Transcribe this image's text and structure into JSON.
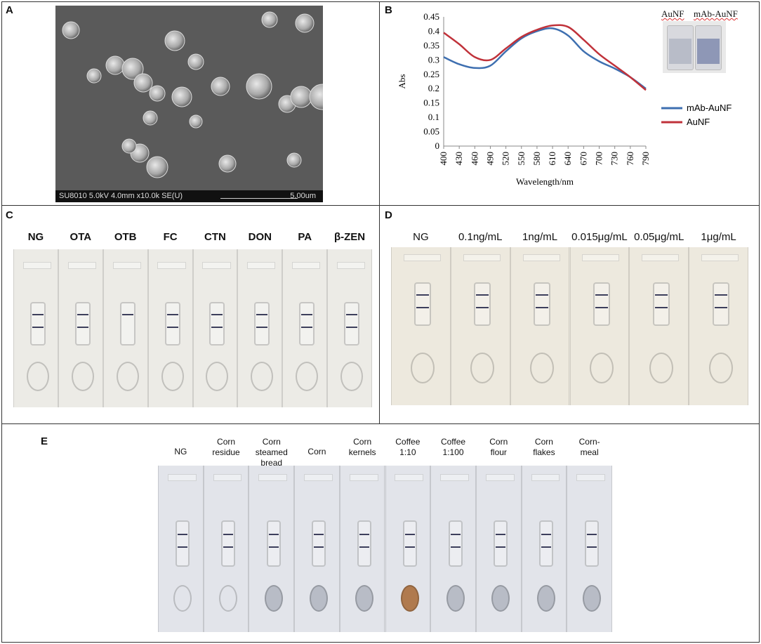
{
  "panels": {
    "A": {
      "label": "A",
      "sem_info": "SU8010 5.0kV 4.0mm x10.0k SE(U)",
      "sem_scale": "5.00um"
    },
    "B": {
      "label": "B",
      "vial_labels": [
        "AuNF",
        "mAb-AuNF"
      ]
    },
    "C": {
      "label": "C",
      "strip_labels": [
        "NG",
        "OTA",
        "OTB",
        "FC",
        "CTN",
        "DON",
        "PA",
        "β-ZEN"
      ]
    },
    "D": {
      "label": "D",
      "strip_labels": [
        "NG",
        "0.1ng/mL",
        "1ng/mL",
        "0.015μg/mL",
        "0.05μg/mL",
        "1μg/mL"
      ]
    },
    "E": {
      "label": "E",
      "strip_labels": [
        [
          "NG"
        ],
        [
          "Corn",
          "residue"
        ],
        [
          "Corn",
          "steamed",
          "bread"
        ],
        [
          "Corn"
        ],
        [
          "Corn",
          "kernels"
        ],
        [
          "Coffee",
          "1:10"
        ],
        [
          "Coffee",
          "1:100"
        ],
        [
          "Corn",
          "flour"
        ],
        [
          "Corn",
          "flakes"
        ],
        [
          "Corn-",
          "meal"
        ]
      ]
    }
  },
  "chart_data": {
    "type": "line",
    "xlabel": "Wavelength/nm",
    "ylabel": "Abs",
    "ylim": [
      0,
      0.45
    ],
    "yticks": [
      "0",
      "0.05",
      "0.1",
      "0.15",
      "0.2",
      "0.25",
      "0.3",
      "0.35",
      "0.4",
      "0.45"
    ],
    "xticks": [
      "400",
      "430",
      "460",
      "490",
      "520",
      "550",
      "580",
      "610",
      "640",
      "670",
      "700",
      "730",
      "760",
      "790"
    ],
    "x": [
      400,
      430,
      460,
      490,
      520,
      550,
      580,
      610,
      640,
      670,
      700,
      730,
      760,
      790
    ],
    "series": [
      {
        "name": "mAb-AuNF",
        "color": "#3e6fb0",
        "values": [
          0.31,
          0.285,
          0.272,
          0.28,
          0.33,
          0.375,
          0.4,
          0.41,
          0.385,
          0.33,
          0.295,
          0.27,
          0.24,
          0.2
        ]
      },
      {
        "name": "AuNF",
        "color": "#c0323a",
        "values": [
          0.395,
          0.355,
          0.31,
          0.3,
          0.34,
          0.38,
          0.405,
          0.42,
          0.415,
          0.37,
          0.32,
          0.28,
          0.24,
          0.195
        ]
      }
    ],
    "legend": "right"
  }
}
